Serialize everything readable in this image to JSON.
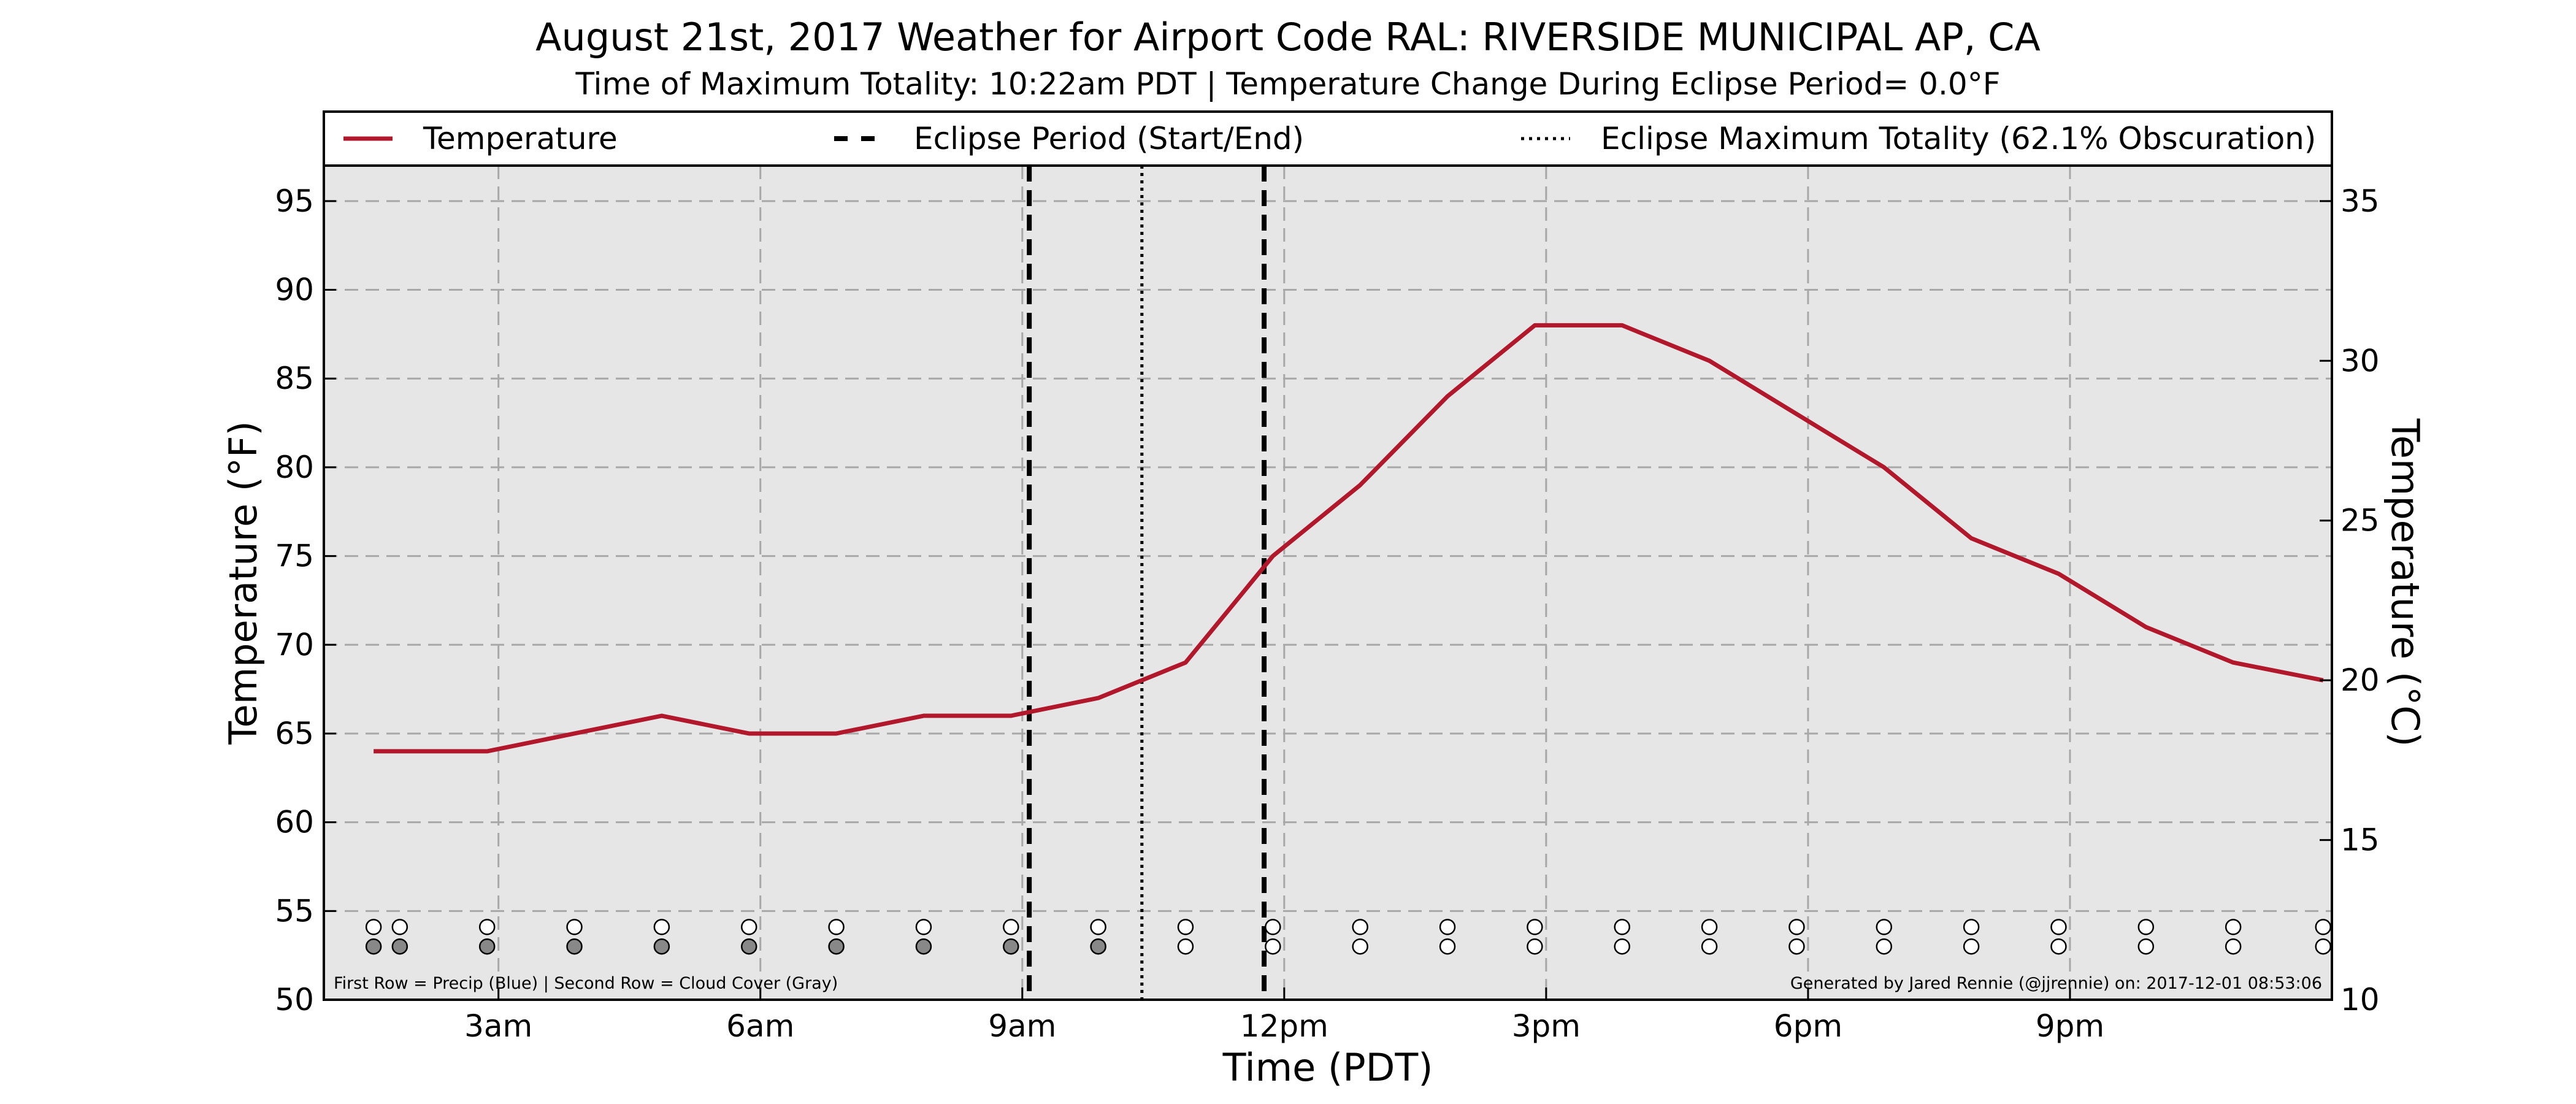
{
  "header": {
    "title": "August 21st, 2017 Weather for Airport Code RAL: RIVERSIDE MUNICIPAL AP, CA",
    "subtitle": "Time of Maximum Totality: 10:22am PDT | Temperature Change During Eclipse Period= 0.0°F"
  },
  "colors": {
    "temperature_line": "#b2182b",
    "plot_background": "#e6e6e6",
    "grid": "#a8a8a8",
    "cloud_marker_fill": "#888888"
  },
  "chart_data": {
    "type": "line",
    "title": "August 21st, 2017 Weather for Airport Code RAL: RIVERSIDE MUNICIPAL AP, CA",
    "subtitle": "Time of Maximum Totality: 10:22am PDT | Temperature Change During Eclipse Period= 0.0°F",
    "xlabel": "Time (PDT)",
    "ylabel": "Temperature (°F)",
    "ylabel_right": "Temperature (°C)",
    "xlim": [
      1.0,
      24.0
    ],
    "ylim": [
      50,
      97
    ],
    "ylim_right": [
      10,
      36.11
    ],
    "x_ticks": [
      {
        "x": 3,
        "label": "3am"
      },
      {
        "x": 6,
        "label": "6am"
      },
      {
        "x": 9,
        "label": "9am"
      },
      {
        "x": 12,
        "label": "12pm"
      },
      {
        "x": 15,
        "label": "3pm"
      },
      {
        "x": 18,
        "label": "6pm"
      },
      {
        "x": 21,
        "label": "9pm"
      }
    ],
    "y_ticks": [
      50,
      55,
      60,
      65,
      70,
      75,
      80,
      85,
      90,
      95
    ],
    "y_ticks_right": [
      10,
      15,
      20,
      25,
      30,
      35
    ],
    "grid": true,
    "legend_position": "top",
    "legend": [
      {
        "label": "Temperature",
        "style": "solid"
      },
      {
        "label": "Eclipse Period (Start/End)",
        "style": "dashed"
      },
      {
        "label": "Eclipse Maximum Totality (62.1% Obscuration)",
        "style": "dotted"
      }
    ],
    "series": [
      {
        "name": "Temperature",
        "x": [
          1.57,
          2.87,
          3.87,
          4.87,
          5.87,
          6.87,
          7.87,
          8.87,
          9.87,
          10.87,
          11.87,
          12.87,
          13.87,
          14.87,
          15.87,
          16.87,
          17.87,
          18.87,
          19.87,
          20.87,
          21.87,
          22.87,
          23.9
        ],
        "y": [
          64,
          64,
          65,
          66,
          65,
          65,
          66,
          66,
          67,
          69,
          75,
          79,
          84,
          88,
          88,
          86,
          83,
          80,
          76,
          74,
          71,
          69,
          68
        ]
      }
    ],
    "eclipse_start": 9.08,
    "eclipse_end": 11.77,
    "eclipse_max": 10.37,
    "observation_markers": {
      "precip_row_y": 54.1,
      "cloud_row_y": 53.0,
      "x": [
        1.57,
        1.87,
        2.87,
        3.87,
        4.87,
        5.87,
        6.87,
        7.87,
        8.87,
        9.87,
        10.87,
        11.87,
        12.87,
        13.87,
        14.87,
        15.87,
        16.87,
        17.87,
        18.87,
        19.87,
        20.87,
        21.87,
        22.87,
        23.9
      ],
      "precip": [
        "none",
        "none",
        "none",
        "none",
        "none",
        "none",
        "none",
        "none",
        "none",
        "none",
        "none",
        "none",
        "none",
        "none",
        "none",
        "none",
        "none",
        "none",
        "none",
        "none",
        "none",
        "none",
        "none",
        "none"
      ],
      "cloud": [
        "gray",
        "gray",
        "gray",
        "gray",
        "gray",
        "gray",
        "gray",
        "gray",
        "gray",
        "gray",
        "none",
        "none",
        "none",
        "none",
        "none",
        "none",
        "none",
        "none",
        "none",
        "none",
        "none",
        "none",
        "none",
        "none"
      ]
    },
    "footnote_left": "First Row = Precip (Blue) | Second Row = Cloud Cover (Gray)",
    "footnote_right": "Generated by Jared Rennie (@jjrennie) on: 2017-12-01 08:53:06"
  }
}
